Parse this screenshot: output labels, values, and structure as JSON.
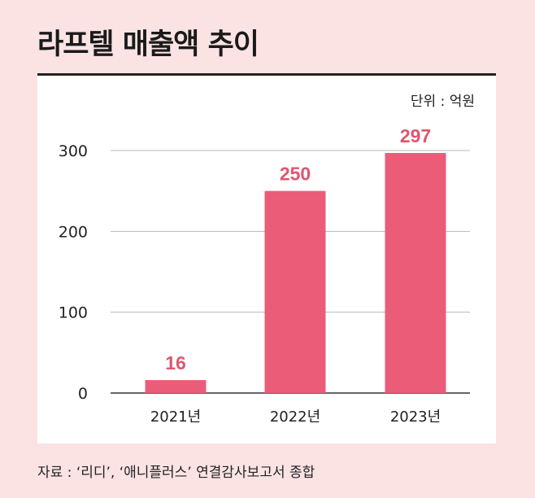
{
  "title": "라프텔 매출액 추이",
  "unit": "단위 : 억원",
  "source": "자료 : ‘리디’, ‘애니플러스’ 연결감사보고서 종합",
  "colors": {
    "background": "#fbe3e4",
    "bar": "#ea5c78",
    "value_label": "#e0566f",
    "grid": "#b8b8b8",
    "axis": "#333333"
  },
  "chart_data": {
    "type": "bar",
    "categories": [
      "2021년",
      "2022년",
      "2023년"
    ],
    "values": [
      16,
      250,
      297
    ],
    "ylim": [
      0,
      300
    ],
    "yticks": [
      0,
      100,
      200,
      300
    ],
    "grid": true
  }
}
